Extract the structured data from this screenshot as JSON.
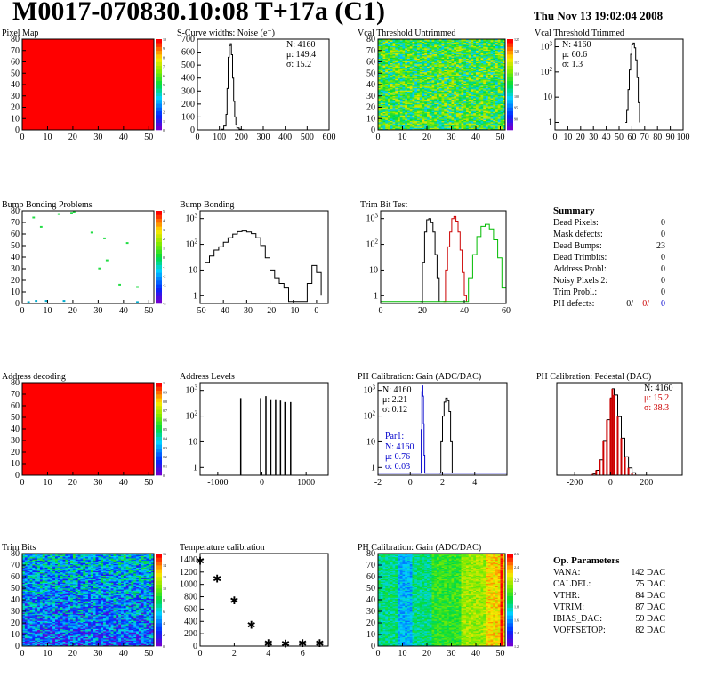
{
  "header": {
    "title": "M0017-070830.10:08 T+17a (C1)",
    "date": "Thu Nov 13 19:02:04 2008"
  },
  "colors": {
    "curve": "#000000",
    "trim_low": "#cc0000",
    "trim_high": "#00bb00",
    "fit_blue": "#0000cc",
    "pedestal_bars": "#cc0000",
    "map_red": "#ff0000"
  },
  "chart_data": [
    {
      "id": "pixel-map",
      "type": "heatmap",
      "title": "Pixel Map",
      "xlim": [
        0,
        52
      ],
      "ylim": [
        0,
        80
      ],
      "xticks": [
        0,
        10,
        20,
        30,
        40,
        50
      ],
      "yticks": [
        0,
        10,
        20,
        30,
        40,
        50,
        60,
        70,
        80
      ],
      "pattern": "uniform",
      "value": 10,
      "zlim": [
        0,
        10
      ],
      "zticks": [
        0,
        1,
        2,
        3,
        4,
        5,
        6,
        7,
        8,
        9,
        10
      ]
    },
    {
      "id": "scurve-widths",
      "type": "line",
      "title": "S-Curve widths: Noise (e⁻)",
      "xlim": [
        0,
        600
      ],
      "ylim": [
        0,
        700
      ],
      "xticks": [
        0,
        100,
        200,
        300,
        400,
        500,
        600
      ],
      "yticks": [
        0,
        100,
        200,
        300,
        400,
        500,
        600,
        700
      ],
      "stats": [
        "N: 4160",
        "μ: 149.4",
        "σ: 15.2"
      ],
      "series": [
        {
          "x": [
            100,
            110,
            120,
            130,
            135,
            140,
            145,
            150,
            155,
            160,
            165,
            170,
            175,
            180,
            190,
            200,
            210
          ],
          "y": [
            0,
            5,
            30,
            120,
            320,
            560,
            650,
            665,
            580,
            400,
            220,
            100,
            40,
            15,
            5,
            2,
            0
          ]
        }
      ]
    },
    {
      "id": "vcal-untrimmed",
      "type": "heatmap",
      "title": "Vcal Threshold Untrimmed",
      "xlim": [
        0,
        52
      ],
      "ylim": [
        0,
        80
      ],
      "xticks": [
        0,
        10,
        20,
        30,
        40,
        50
      ],
      "yticks": [
        0,
        10,
        20,
        30,
        40,
        50,
        60,
        70,
        80
      ],
      "pattern": "noise",
      "zlim": [
        85,
        125
      ],
      "zticks": [
        90,
        95,
        100,
        105,
        110,
        115,
        120,
        125
      ]
    },
    {
      "id": "vcal-trimmed",
      "type": "line",
      "scale": "log",
      "title": "Vcal Threshold Trimmed",
      "xlim": [
        0,
        100
      ],
      "ylim": [
        0.5,
        2000
      ],
      "xticks": [
        0,
        10,
        20,
        30,
        40,
        50,
        60,
        70,
        80,
        90,
        100
      ],
      "yticks": [
        1,
        10,
        100,
        1000
      ],
      "stats": [
        "N: 4160",
        "μ: 60.6",
        "σ:  1.3"
      ],
      "series": [
        {
          "x": [
            55,
            56,
            57,
            58,
            59,
            60,
            61,
            62,
            63,
            64,
            65,
            66
          ],
          "y": [
            1,
            3,
            20,
            120,
            500,
            1200,
            1400,
            900,
            300,
            60,
            6,
            1
          ]
        }
      ]
    },
    {
      "id": "bump-bonding-problems",
      "type": "heatmap",
      "title": "Bump Bonding Problems",
      "xlim": [
        0,
        52
      ],
      "ylim": [
        0,
        80
      ],
      "xticks": [
        0,
        10,
        20,
        30,
        40,
        50
      ],
      "yticks": [
        0,
        10,
        20,
        30,
        40,
        50,
        60,
        70,
        80
      ],
      "pattern": "sparse",
      "points": [
        [
          4,
          74
        ],
        [
          7,
          66
        ],
        [
          14,
          77
        ],
        [
          19,
          78
        ],
        [
          20,
          79
        ],
        [
          27,
          61
        ],
        [
          32,
          56
        ],
        [
          41,
          52
        ],
        [
          33,
          37
        ],
        [
          30,
          30
        ],
        [
          38,
          16
        ],
        [
          45,
          14
        ],
        [
          5,
          2
        ],
        [
          9,
          2
        ],
        [
          16,
          2
        ],
        [
          2,
          1
        ],
        [
          45,
          1
        ]
      ],
      "zlim": [
        -5,
        5
      ],
      "zticks": [
        -5,
        -4,
        -3,
        -2,
        -1,
        0,
        1,
        2,
        3,
        4,
        5
      ]
    },
    {
      "id": "bump-bonding",
      "type": "line",
      "scale": "log",
      "title": "Bump Bonding",
      "xlim": [
        -50,
        5
      ],
      "ylim": [
        0.5,
        2000
      ],
      "xticks": [
        -50,
        -40,
        -30,
        -20,
        -10,
        0
      ],
      "yticks": [
        1,
        10,
        100,
        1000
      ],
      "series": [
        {
          "x": [
            -48,
            -46,
            -44,
            -42,
            -40,
            -38,
            -36,
            -34,
            -32,
            -30,
            -28,
            -26,
            -24,
            -22,
            -20,
            -18,
            -16,
            -14,
            -12,
            -10,
            -8,
            -6,
            -4,
            -2,
            0,
            2
          ],
          "y": [
            20,
            35,
            60,
            80,
            120,
            180,
            250,
            310,
            330,
            300,
            260,
            180,
            90,
            30,
            10,
            5,
            3,
            2,
            0.6,
            0.6,
            0.6,
            0.6,
            3,
            15,
            8,
            1
          ]
        }
      ]
    },
    {
      "id": "trim-bit-test",
      "type": "line",
      "scale": "log",
      "title": "Trim Bit Test",
      "xlim": [
        0,
        60
      ],
      "ylim": [
        0.5,
        2000
      ],
      "xticks": [
        0,
        20,
        40,
        60
      ],
      "yticks": [
        1,
        10,
        100,
        1000
      ],
      "series": [
        {
          "color": "#000000",
          "x": [
            19,
            20,
            21,
            22,
            23,
            24,
            25,
            26,
            27,
            28
          ],
          "y": [
            0.6,
            20,
            300,
            900,
            1000,
            700,
            300,
            40,
            5,
            0.6
          ]
        },
        {
          "color": "#cc0000",
          "x": [
            30,
            31,
            32,
            33,
            34,
            35,
            36,
            37,
            38,
            39,
            40,
            41
          ],
          "y": [
            0.6,
            10,
            80,
            300,
            1000,
            1200,
            800,
            300,
            60,
            8,
            1,
            0.6
          ]
        },
        {
          "color": "#00bb00",
          "x": [
            0,
            40,
            42,
            44,
            46,
            48,
            50,
            52,
            54,
            56,
            58,
            60
          ],
          "y": [
            0.6,
            0.6,
            5,
            40,
            200,
            500,
            600,
            400,
            150,
            30,
            2,
            0.6
          ]
        }
      ]
    },
    {
      "id": "summary",
      "type": "table",
      "title": "Summary",
      "rows": [
        {
          "label": "Dead Pixels:",
          "value": "0"
        },
        {
          "label": "Mask defects:",
          "value": "0"
        },
        {
          "label": "Dead Bumps:",
          "value": "23"
        },
        {
          "label": "Dead Trimbits:",
          "value": "0"
        },
        {
          "label": "Address Probl:",
          "value": "0"
        },
        {
          "label": "Noisy Pixels 2:",
          "value": "0"
        },
        {
          "label": "Trim Probl.:",
          "value": "0"
        }
      ],
      "ph_defects": {
        "label": "PH defects:",
        "values": [
          "0/",
          "0/",
          "0"
        ],
        "colors": [
          "#000000",
          "#cc0000",
          "#0000cc"
        ]
      }
    },
    {
      "id": "address-decoding",
      "type": "heatmap",
      "title": "Address decoding",
      "xlim": [
        0,
        52
      ],
      "ylim": [
        0,
        80
      ],
      "xticks": [
        0,
        10,
        20,
        30,
        40,
        50
      ],
      "yticks": [
        0,
        10,
        20,
        30,
        40,
        50,
        60,
        70,
        80
      ],
      "pattern": "uniform",
      "value": 1,
      "zlim": [
        0,
        1
      ],
      "zticks": [
        0,
        0.1,
        0.2,
        0.3,
        0.4,
        0.5,
        0.6,
        0.7,
        0.8,
        0.9,
        1
      ]
    },
    {
      "id": "address-levels",
      "type": "bar",
      "scale": "log",
      "title": "Address Levels",
      "xlim": [
        -1400,
        1500
      ],
      "ylim": [
        0.5,
        2000
      ],
      "xticks": [
        -1000,
        0,
        1000
      ],
      "yticks": [
        1,
        10,
        100,
        1000
      ],
      "spikes": [
        {
          "x": -480,
          "y": 500
        },
        {
          "x": -30,
          "y": 500
        },
        {
          "x": 90,
          "y": 600
        },
        {
          "x": 200,
          "y": 450
        },
        {
          "x": 310,
          "y": 450
        },
        {
          "x": 420,
          "y": 400
        },
        {
          "x": 520,
          "y": 350
        },
        {
          "x": 650,
          "y": 350
        }
      ]
    },
    {
      "id": "ph-gain",
      "type": "line",
      "scale": "log",
      "title": "PH Calibration: Gain (ADC/DAC)",
      "xlim": [
        -2,
        6
      ],
      "ylim": [
        0.5,
        2000
      ],
      "xticks": [
        -2,
        0,
        2,
        4
      ],
      "yticks": [
        1,
        10,
        100,
        1000
      ],
      "stats": [
        "N: 4160",
        "μ: 2.21",
        "σ: 0.12"
      ],
      "fit": {
        "title": "Par1:",
        "lines": [
          "N: 4160",
          "μ: 0.76",
          "σ: 0.03"
        ]
      },
      "series": [
        {
          "color": "#000000",
          "x": [
            1.8,
            1.9,
            2.0,
            2.1,
            2.2,
            2.3,
            2.4,
            2.5,
            2.6
          ],
          "y": [
            0.6,
            10,
            100,
            350,
            500,
            400,
            150,
            10,
            0.6
          ]
        },
        {
          "color": "#0000cc",
          "x": [
            -2,
            0.65,
            0.68,
            0.72,
            0.75,
            0.78,
            0.82,
            0.86,
            0.9,
            6
          ],
          "y": [
            0.6,
            0.6,
            30,
            900,
            1500,
            600,
            50,
            3,
            0.6,
            0.6
          ]
        }
      ]
    },
    {
      "id": "ph-pedestal",
      "type": "line",
      "title": "PH Calibration: Pedestal (DAC)",
      "xlim": [
        -300,
        400
      ],
      "ylim": [
        0,
        150
      ],
      "xticks": [
        -200,
        0,
        200
      ],
      "yticks": [],
      "stats": [
        "N: 4160",
        "μ: 15.2",
        "σ: 38.3"
      ],
      "series": [
        {
          "x": [
            -100,
            -80,
            -60,
            -40,
            -20,
            0,
            10,
            20,
            40,
            60,
            80,
            100,
            120,
            140
          ],
          "y": [
            2,
            8,
            25,
            55,
            90,
            125,
            140,
            130,
            95,
            60,
            30,
            12,
            4,
            1
          ]
        }
      ]
    },
    {
      "id": "trim-bits",
      "type": "heatmap",
      "title": "Trim Bits",
      "xlim": [
        0,
        52
      ],
      "ylim": [
        0,
        80
      ],
      "xticks": [
        0,
        10,
        20,
        30,
        40,
        50
      ],
      "yticks": [
        0,
        10,
        20,
        30,
        40,
        50,
        60,
        70,
        80
      ],
      "pattern": "noise",
      "zlim": [
        0,
        16
      ],
      "zticks": [
        0,
        2,
        4,
        6,
        8,
        10,
        12,
        14,
        16
      ]
    },
    {
      "id": "temperature-calibration",
      "type": "scatter",
      "title": "Temperature calibration",
      "xlim": [
        0,
        7.5
      ],
      "ylim": [
        0,
        1500
      ],
      "xticks": [
        0,
        2,
        4,
        6
      ],
      "yticks": [
        0,
        200,
        400,
        600,
        800,
        1000,
        1200,
        1400
      ],
      "x": [
        0,
        1,
        2,
        3,
        4,
        5,
        6,
        7
      ],
      "y": [
        1390,
        1100,
        750,
        350,
        60,
        50,
        55,
        60
      ]
    },
    {
      "id": "ph-gain-map",
      "type": "heatmap",
      "title": "PH Calibration: Gain (ADC/DAC)",
      "xlim": [
        0,
        52
      ],
      "ylim": [
        0,
        80
      ],
      "xticks": [
        0,
        10,
        20,
        30,
        40,
        50
      ],
      "yticks": [
        0,
        10,
        20,
        30,
        40,
        50,
        60,
        70,
        80
      ],
      "pattern": "columns",
      "zlim": [
        1.2,
        2.6
      ],
      "zticks": [
        1.2,
        1.4,
        1.6,
        1.8,
        2.0,
        2.2,
        2.4,
        2.6
      ]
    },
    {
      "id": "op-parameters",
      "type": "table",
      "title": "Op. Parameters",
      "rows": [
        {
          "label": "VANA:",
          "value": "142 DAC"
        },
        {
          "label": "CALDEL:",
          "value": "75 DAC"
        },
        {
          "label": "VTHR:",
          "value": "84 DAC"
        },
        {
          "label": "VTRIM:",
          "value": "87 DAC"
        },
        {
          "label": "IBIAS_DAC:",
          "value": "59 DAC"
        },
        {
          "label": "VOFFSETOP:",
          "value": "82 DAC"
        }
      ]
    }
  ]
}
